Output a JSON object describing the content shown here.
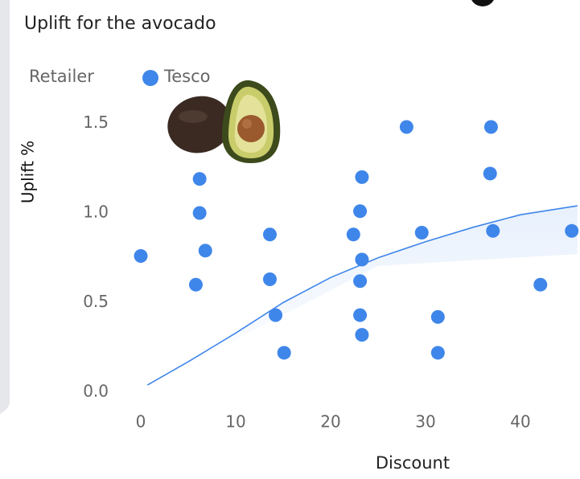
{
  "chart_data": {
    "type": "scatter",
    "title": "Uplift for the avocado",
    "legend_title": "Retailer",
    "x_label": "Discount",
    "y_label": "Uplift %",
    "xlim": [
      -3,
      46
    ],
    "ylim": [
      -0.1,
      1.6
    ],
    "xticks": [
      0,
      10,
      20,
      30,
      40
    ],
    "yticks": [
      {
        "value": 0,
        "label": "0.0"
      },
      0.5,
      {
        "value": 1,
        "label": "1.0"
      },
      1.5
    ],
    "series": [
      {
        "name": "Tesco",
        "color": "#3f86ea",
        "x": [
          0,
          6.2,
          6.2,
          6.8,
          5.8,
          13.6,
          13.6,
          14.2,
          15.1,
          23.3,
          23.1,
          22.4,
          23.3,
          23.1,
          23.1,
          23.3,
          28,
          29.6,
          31.3,
          31.3,
          36.9,
          36.8,
          37.1,
          42.1,
          45.4
        ],
        "values": [
          0.76,
          1.19,
          1.0,
          0.79,
          0.6,
          0.88,
          0.63,
          0.43,
          0.22,
          1.2,
          1.01,
          0.88,
          0.74,
          0.62,
          0.43,
          0.32,
          1.48,
          0.89,
          0.42,
          0.22,
          1.48,
          1.22,
          0.9,
          0.6,
          0.9
        ]
      }
    ],
    "trend": {
      "color": "#3f86ea",
      "x": [
        0.7,
        5,
        10,
        15,
        20,
        25,
        30,
        35,
        40,
        46
      ],
      "values": [
        0.04,
        0.17,
        0.33,
        0.5,
        0.64,
        0.75,
        0.84,
        0.92,
        0.99,
        1.04
      ]
    }
  }
}
